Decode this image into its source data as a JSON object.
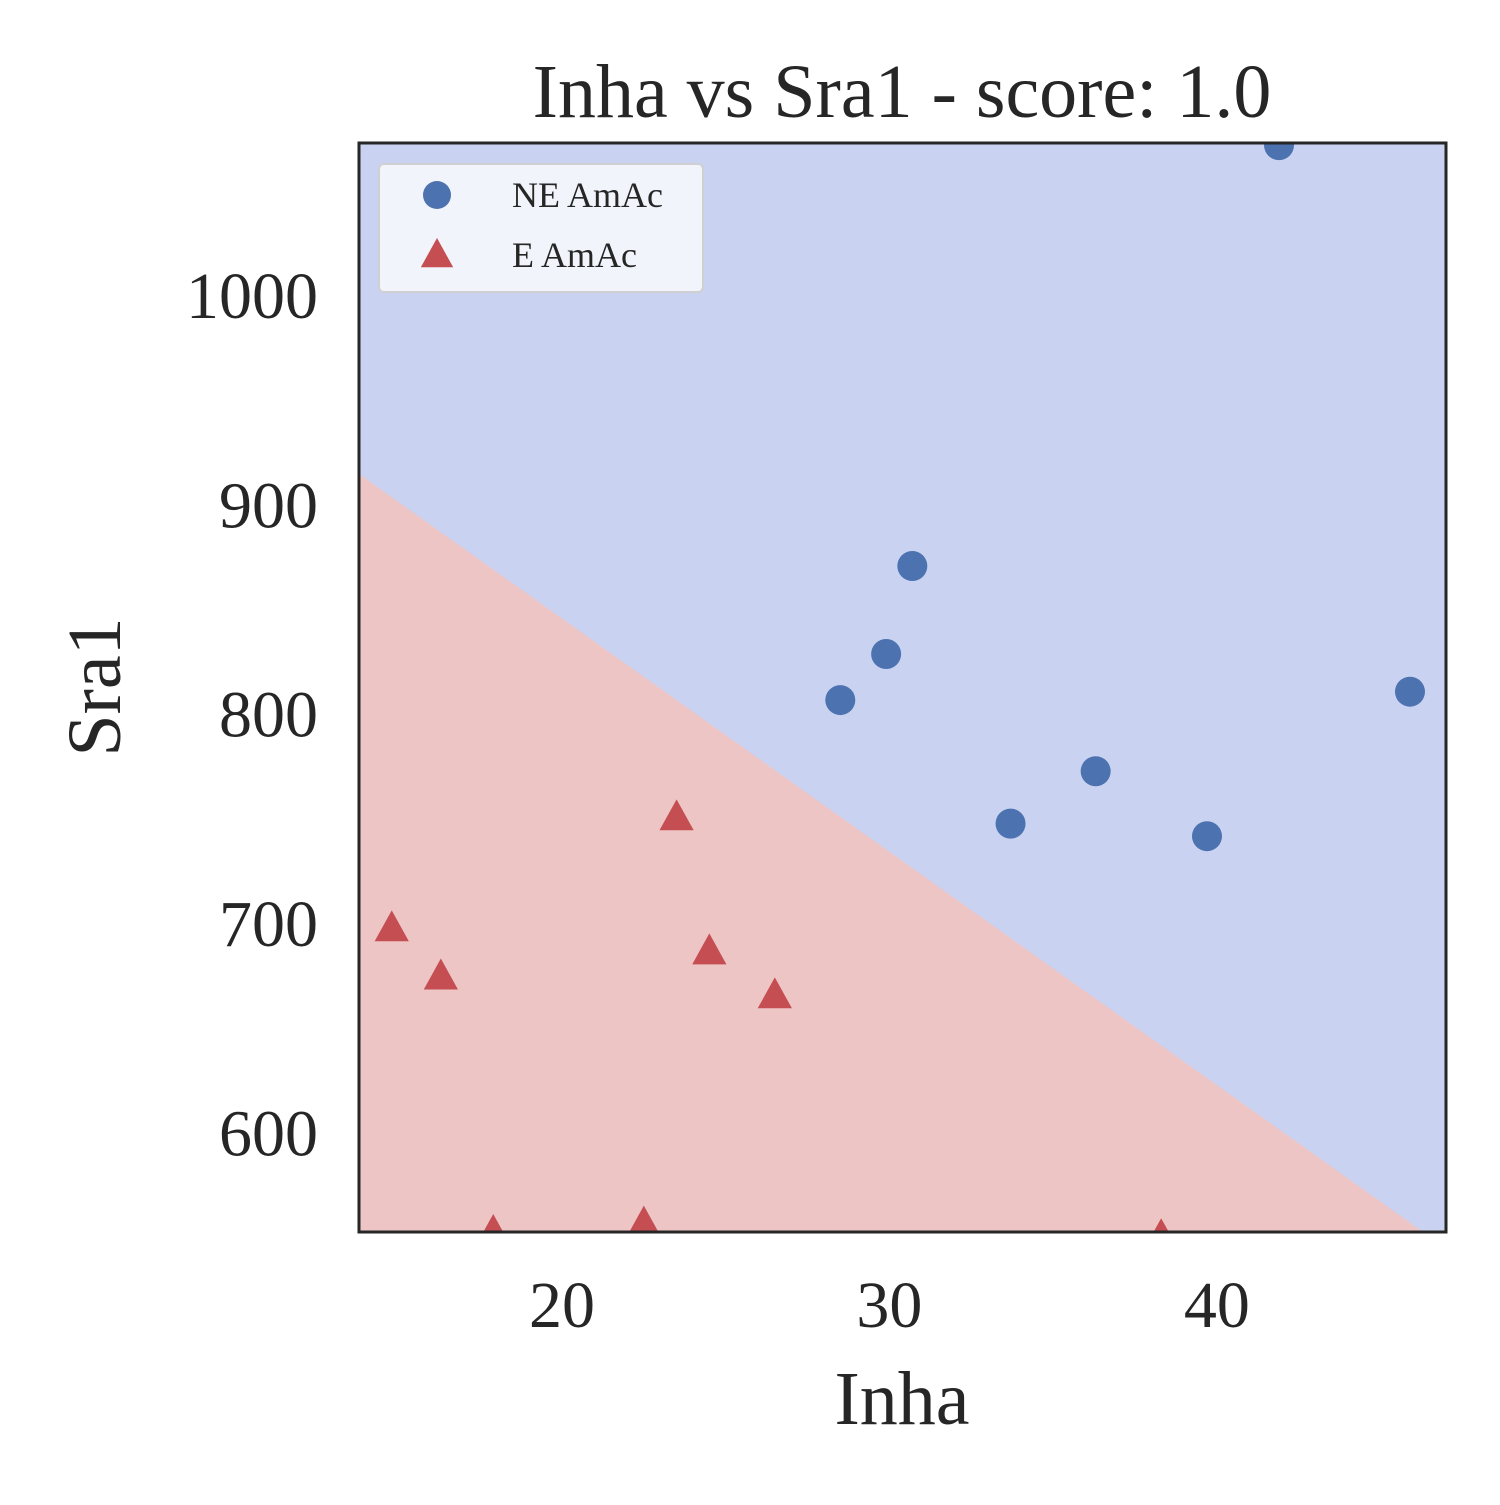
{
  "chart_data": {
    "type": "scatter",
    "title": "Inha vs Sra1 - score: 1.0",
    "xlabel": "Inha",
    "ylabel": "Sra1",
    "xlim": [
      13.8,
      47.0
    ],
    "ylim": [
      553,
      1073
    ],
    "xticks": [
      20,
      30,
      40
    ],
    "yticks": [
      600,
      700,
      800,
      900,
      1000
    ],
    "grid": false,
    "legend_position": "top-left",
    "decision_boundary": {
      "points": [
        [
          13.8,
          915
        ],
        [
          46.3,
          553
        ]
      ],
      "lower_region_class": "E AmAc",
      "upper_region_class": "NE AmAc"
    },
    "series": [
      {
        "name": "NE AmAc",
        "marker": "circle",
        "color": "#4c72b0",
        "points": [
          [
            28.5,
            807
          ],
          [
            29.9,
            829
          ],
          [
            30.7,
            871
          ],
          [
            33.7,
            748
          ],
          [
            36.3,
            773
          ],
          [
            39.7,
            742
          ],
          [
            41.9,
            1072
          ],
          [
            45.9,
            811
          ]
        ]
      },
      {
        "name": "E AmAc",
        "marker": "triangle",
        "color": "#c44e52",
        "points": [
          [
            14.8,
            698
          ],
          [
            16.3,
            675
          ],
          [
            17.9,
            553
          ],
          [
            22.5,
            557
          ],
          [
            23.5,
            751
          ],
          [
            24.5,
            687
          ],
          [
            26.5,
            666
          ],
          [
            38.3,
            551
          ]
        ]
      }
    ],
    "colors": {
      "region_upper": "#c9d2f1",
      "region_lower": "#eec5c5",
      "axes_edge": "#262626"
    }
  }
}
